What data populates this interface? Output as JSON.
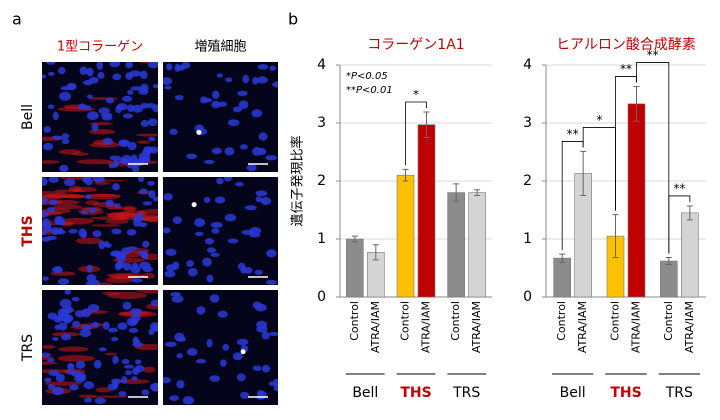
{
  "panel_a": {
    "label": "a",
    "columns": [
      "1型コラーゲン",
      "増殖細胞"
    ],
    "column_colors": [
      "#c00000",
      "#000000"
    ],
    "rows": [
      "Bell",
      "THS",
      "TRS"
    ],
    "row_colors": [
      "#000000",
      "#c00000",
      "#000000"
    ]
  },
  "panel_b": {
    "label": "b"
  },
  "chart_data": [
    {
      "type": "bar",
      "title": "コラーゲン1A1",
      "title_color": "#c00000",
      "y_label": "遺伝子発現比率",
      "categories": [
        "Control",
        "ATRA/IAM",
        "Control",
        "ATRA/IAM",
        "Control",
        "ATRA/IAM"
      ],
      "groups": [
        "Bell",
        "THS",
        "TRS"
      ],
      "group_colors": [
        "#000000",
        "#c00000",
        "#000000"
      ],
      "values": [
        1.0,
        0.77,
        2.1,
        2.97,
        1.8,
        1.8
      ],
      "errors": [
        0.05,
        0.13,
        0.1,
        0.22,
        0.15,
        0.05
      ],
      "colors": [
        "#8c8c8c",
        "#d4d4d4",
        "#ffc000",
        "#c00000",
        "#8c8c8c",
        "#d4d4d4"
      ],
      "ylim": [
        0,
        4
      ],
      "yticks": [
        0,
        1,
        2,
        3,
        4
      ],
      "grid": true,
      "notes": [
        "*P<0.05",
        "**P<0.01"
      ],
      "significance": [
        {
          "pair": [
            2,
            3
          ],
          "label": "*"
        }
      ]
    },
    {
      "type": "bar",
      "title": "ヒアルロン酸合成酵素",
      "title_color": "#c00000",
      "categories": [
        "Control",
        "ATRA/IAM",
        "Control",
        "ATRA/IAM",
        "Control",
        "ATRA/IAM"
      ],
      "groups": [
        "Bell",
        "THS",
        "TRS"
      ],
      "group_colors": [
        "#000000",
        "#c00000",
        "#000000"
      ],
      "values": [
        0.67,
        2.13,
        1.05,
        3.33,
        0.62,
        1.45
      ],
      "errors": [
        0.07,
        0.38,
        0.37,
        0.3,
        0.06,
        0.12
      ],
      "colors": [
        "#8c8c8c",
        "#d4d4d4",
        "#ffc000",
        "#c00000",
        "#8c8c8c",
        "#d4d4d4"
      ],
      "ylim": [
        0,
        4
      ],
      "yticks": [
        0,
        1,
        2,
        3,
        4
      ],
      "grid": true,
      "significance": [
        {
          "pair": [
            0,
            1
          ],
          "label": "**"
        },
        {
          "pair": [
            1,
            2
          ],
          "label": "*"
        },
        {
          "pair": [
            2,
            3
          ],
          "label": "**"
        },
        {
          "pair": [
            3,
            4
          ],
          "label": "**"
        },
        {
          "pair": [
            4,
            5
          ],
          "label": "**"
        }
      ]
    }
  ]
}
